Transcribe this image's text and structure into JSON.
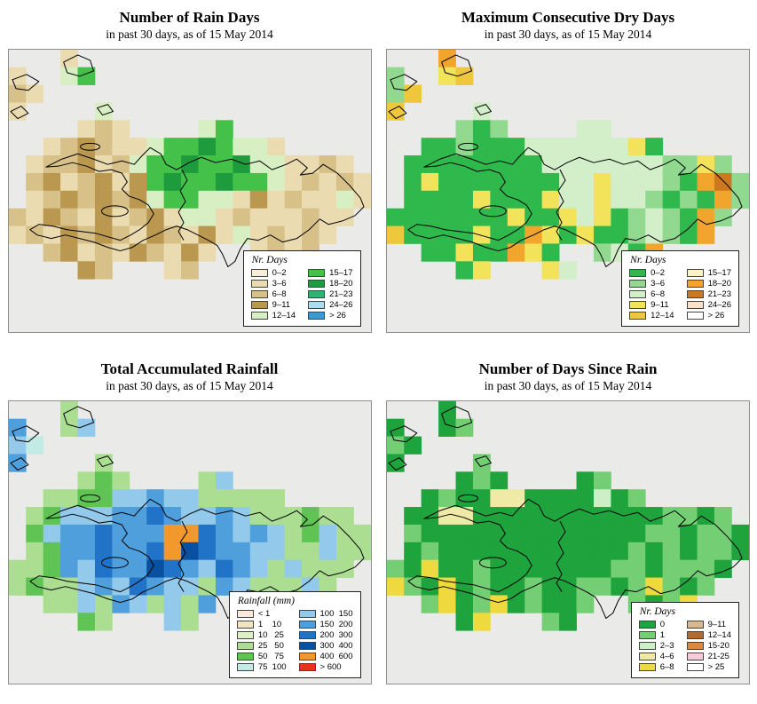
{
  "map": {
    "sea_color": "#EAEAE8",
    "border_color": "#8f8f8f",
    "coast_color": "#000000"
  },
  "panels": [
    {
      "id": "rain-days",
      "title": "Number of Rain Days",
      "subtitle": "in past 30 days, as of  15 May 2014",
      "legend_title": "Nr. Days",
      "legend_left": [
        {
          "label": "0–2",
          "color": "#F7EDD8"
        },
        {
          "label": "3–6",
          "color": "#EADCB0"
        },
        {
          "label": "6–8",
          "color": "#D8C189"
        },
        {
          "label": "9–11",
          "color": "#BB9850"
        },
        {
          "label": "12–14",
          "color": "#D8EFC4"
        }
      ],
      "legend_right": [
        {
          "label": "15–17",
          "color": "#43C148"
        },
        {
          "label": "18–20",
          "color": "#1E9C3D"
        },
        {
          "label": "21–23",
          "color": "#2FB372"
        },
        {
          "label": "24–26",
          "color": "#A9DEF0"
        },
        {
          "label": "> 26",
          "color": "#3D9AD1"
        }
      ],
      "palette": {
        "a": "#F7EDD8",
        "b": "#EADCB0",
        "c": "#D8C189",
        "d": "#BB9850",
        "e": "#D8EFC4",
        "f": "#43C148",
        "g": "#1E9C3D",
        "h": "#2FB372",
        "i": "#A9DEF0",
        "j": "#3D9AD1"
      },
      "grid": [
        "...b.................",
        "b..ef................",
        "cb...................",
        "b....e...............",
        "....bcb....ef........",
        "..bcdcbbeffgfeeb.....",
        ".bccdbceffgffgeebbcb.",
        ".cdbcdbdfgffgffebcbcb",
        ".bcdcdcdeffeebdbcbbeb",
        "cbdcbdbcdbeebcbbbcbb.",
        "bcbdcdcbdcbdbebcbcb..",
        "..cdbcbdcbdb..bcbc...",
        "....dc...bc.........."
      ]
    },
    {
      "id": "consecutive-dry-days",
      "title": "Maximum Consecutive Dry Days",
      "subtitle": "in past 30 days, as of  15 May 2014",
      "legend_title": "Nr. Days",
      "legend_left": [
        {
          "label": "0–2",
          "color": "#2FB84B"
        },
        {
          "label": "3–6",
          "color": "#90D98F"
        },
        {
          "label": "6–8",
          "color": "#D3EFC9"
        },
        {
          "label": "9–11",
          "color": "#F2E35A"
        },
        {
          "label": "12–14",
          "color": "#EEC73C"
        }
      ],
      "legend_right": [
        {
          "label": "15–17",
          "color": "#FBF3C6"
        },
        {
          "label": "18–20",
          "color": "#F2A52D"
        },
        {
          "label": "21–23",
          "color": "#CC781E"
        },
        {
          "label": "24–26",
          "color": "#F9E2C7"
        },
        {
          "label": "> 26",
          "color": "#FFFFFF"
        }
      ],
      "palette": {
        "a": "#2FB84B",
        "b": "#90D98F",
        "c": "#D3EFC9",
        "d": "#F2E35A",
        "e": "#EEC73C",
        "f": "#FBF3C6",
        "g": "#F2A52D",
        "h": "#CC781E",
        "i": "#F9E2C7",
        "j": "#FFFFFF"
      },
      "grid": [
        "...g.................",
        "b..de................",
        "be...................",
        "e....c...............",
        "....bab....cc........",
        "..aabaaaccccccda.....",
        ".aaaaaaaacccccccbbdb.",
        ".adaaaaaaaccdcccbaghb",
        ".aaaadaaadccdccbabagb",
        "aaaaaaadaadcdabcbagb.",
        "eaaaadaagdadaabcbag..",
        "..aadaagda..bcag...",
        "....ad...dc.........."
      ]
    },
    {
      "id": "accumulated-rainfall",
      "title": "Total Accumulated Rainfall",
      "subtitle": "in past 30 days, as of  15 May 2014",
      "legend_title": "Rainfall (mm)",
      "legend_left": [
        {
          "label": "< 1",
          "color": "#FAE9DC"
        },
        {
          "label": "1    10",
          "color": "#F0E5C0"
        },
        {
          "label": "10   25",
          "color": "#DDF0C6"
        },
        {
          "label": "25   50",
          "color": "#ABDE91"
        },
        {
          "label": "50   75",
          "color": "#5FC454"
        },
        {
          "label": "75  100",
          "color": "#C3EBE5"
        }
      ],
      "legend_right": [
        {
          "label": "100  150",
          "color": "#93C9EA"
        },
        {
          "label": "150  200",
          "color": "#4F9FDC"
        },
        {
          "label": "200  300",
          "color": "#2173C8"
        },
        {
          "label": "300  400",
          "color": "#0A50A0"
        },
        {
          "label": "400  600",
          "color": "#F2992E"
        },
        {
          "label": "> 600",
          "color": "#E8321E"
        }
      ],
      "palette": {
        "a": "#FAE9DC",
        "b": "#F0E5C0",
        "c": "#DDF0C6",
        "d": "#ABDE91",
        "e": "#5FC454",
        "f": "#C3EBE5",
        "g": "#93C9EA",
        "h": "#4F9FDC",
        "i": "#2173C8",
        "j": "#0A50A0",
        "k": "#F2992E",
        "l": "#E8321E"
      },
      "grid": [
        "...d.................",
        "h..dg................",
        "gf...................",
        "h....d...............",
        "....ded....dg........",
        "..ddeegghggddddd.....",
        ".deggghhihgghgdddedd.",
        ".eghhihhhkkihghgdegdd",
        ".dehhihhikjihhggddgdd",
        "ddehgihhjihgihgdgddd.",
        "deddghgihggdhgdddgd..",
        "..ddgdhgdgdh..dgdd...",
        "....ed...gd.........."
      ]
    },
    {
      "id": "days-since-rain",
      "title": "Number of Days Since Rain",
      "subtitle": "in past 30 days, as of  15 May 2014",
      "legend_title": "Nr. Days",
      "legend_left": [
        {
          "label": "0",
          "color": "#1FA33C"
        },
        {
          "label": "1",
          "color": "#74CE74"
        },
        {
          "label": "2–3",
          "color": "#CDEFC8"
        },
        {
          "label": "4–6",
          "color": "#EFEBA6"
        },
        {
          "label": "6–8",
          "color": "#EED93E"
        }
      ],
      "legend_right": [
        {
          "label": "9–11",
          "color": "#D9B98C"
        },
        {
          "label": "12–14",
          "color": "#B26A2F"
        },
        {
          "label": "15-20",
          "color": "#D68A45"
        },
        {
          "label": "21-25",
          "color": "#F8CBD8"
        },
        {
          "label": "> 25",
          "color": "#FFFFFF"
        }
      ],
      "palette": {
        "a": "#1FA33C",
        "b": "#74CE74",
        "c": "#CDEFC8",
        "d": "#EFEBA6",
        "e": "#EED93E",
        "f": "#D9B98C",
        "g": "#B26A2F",
        "h": "#D68A45",
        "i": "#F8CBD8",
        "j": "#FFFFFF"
      },
      "grid": [
        "...a.................",
        "a..ab................",
        "ba...................",
        "a....b...............",
        "....aba....ab........",
        "..abaaddaaaacab......",
        ".aaddaaaaaaaaaaabbab.",
        ".baaaaaaaaaaaaabbabba",
        ".abaaaaaaaaaaabababba",
        "baeaabaaaaaaabbabbba.",
        "ebaeabaabaabbabebab..",
        "..beabeabaab..babe...",
        "....ae...ba.........."
      ]
    }
  ]
}
